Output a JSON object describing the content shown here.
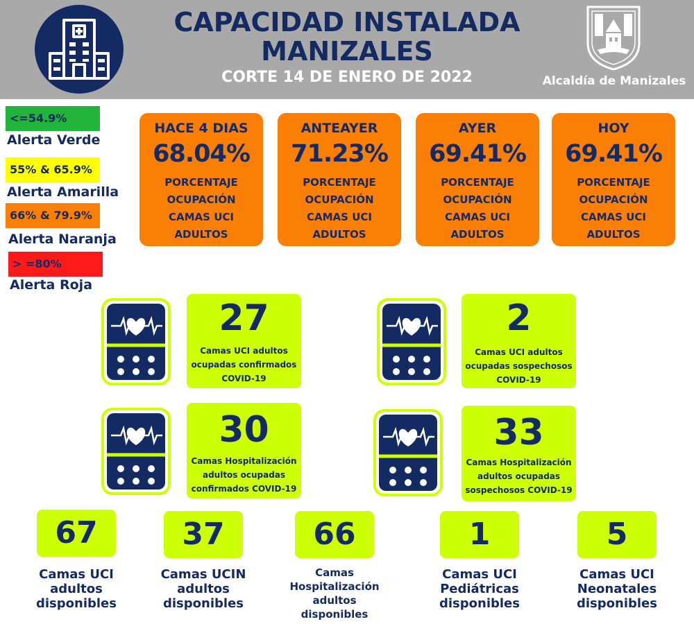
{
  "header": {
    "title_line1": "CAPACIDAD INSTALADA",
    "title_line2": "MANIZALES",
    "subtitle": "CORTE 14 DE ENERO DE 2022",
    "org_name": "Alcaldía de Manizales",
    "bg_color": "#a9a9a9",
    "navy": "#132a63"
  },
  "legend": [
    {
      "range": "<=54.9%",
      "label": "Alerta Verde",
      "color": "#22b33a"
    },
    {
      "range": "55% & 65.9%",
      "label": "Alerta Amarilla",
      "color": "#ffff00"
    },
    {
      "range": "66% & 79.9%",
      "label": "Alerta Naranja",
      "color": "#fc7f05"
    },
    {
      "range": "> =80%",
      "label": "Alerta Roja",
      "color": "#ff1a1a"
    }
  ],
  "occupancy": [
    {
      "period": "HACE 4 DIAS",
      "value": "68.04%",
      "line1": "PORCENTAJE",
      "line2": "OCUPACIÓN",
      "line3": "CAMAS UCI",
      "line4": "ADULTOS"
    },
    {
      "period": "ANTEAYER",
      "value": "71.23%",
      "line1": "PORCENTAJE",
      "line2": "OCUPACIÓN",
      "line3": "CAMAS UCI",
      "line4": "ADULTOS"
    },
    {
      "period": "AYER",
      "value": "69.41%",
      "line1": "PORCENTAJE",
      "line2": "OCUPACIÓN",
      "line3": "CAMAS UCI",
      "line4": "ADULTOS"
    },
    {
      "period": "HOY",
      "value": "69.41%",
      "line1": "PORCENTAJE",
      "line2": "OCUPACIÓN",
      "line3": "CAMAS UCI",
      "line4": "ADULTOS"
    }
  ],
  "stats": [
    {
      "value": "27",
      "line1": "Camas UCI adultos",
      "line2": "ocupadas confirmados",
      "line3": "COVID-19"
    },
    {
      "value": "2",
      "line1": "Camas UCI adultos",
      "line2": "ocupadas sospechosos",
      "line3": "COVID-19"
    },
    {
      "value": "30",
      "line1": "Camas  Hospitalización",
      "line2": "adultos ocupadas",
      "line3": "confirmados COVID-19"
    },
    {
      "value": "33",
      "line1": "Camas  Hospitalización",
      "line2": "adultos ocupadas",
      "line3": "sospechosos COVID-19"
    }
  ],
  "available": [
    {
      "value": "67",
      "line1": "Camas UCI",
      "line2": "adultos",
      "line3": "disponibles"
    },
    {
      "value": "37",
      "line1": "Camas UCIN",
      "line2": "adultos",
      "line3": "disponibles"
    },
    {
      "value": "66",
      "line1": "Camas",
      "line2": "Hospitalización",
      "line3": "adultos",
      "line4": "disponibles"
    },
    {
      "value": "1",
      "line1": "Camas  UCI",
      "line2": "Pediátricas",
      "line3": "disponibles"
    },
    {
      "value": "5",
      "line1": "Camas  UCI",
      "line2": "Neonatales",
      "line3": "disponibles"
    }
  ],
  "icons": {
    "header_icon": "hospital-building-icon",
    "logo": "alcaldia-seal-icon",
    "stat_icon": "heart-monitor-icon"
  },
  "colors": {
    "orange": "#fc7f05",
    "lime": "#cdff05",
    "navy": "#132a63"
  }
}
